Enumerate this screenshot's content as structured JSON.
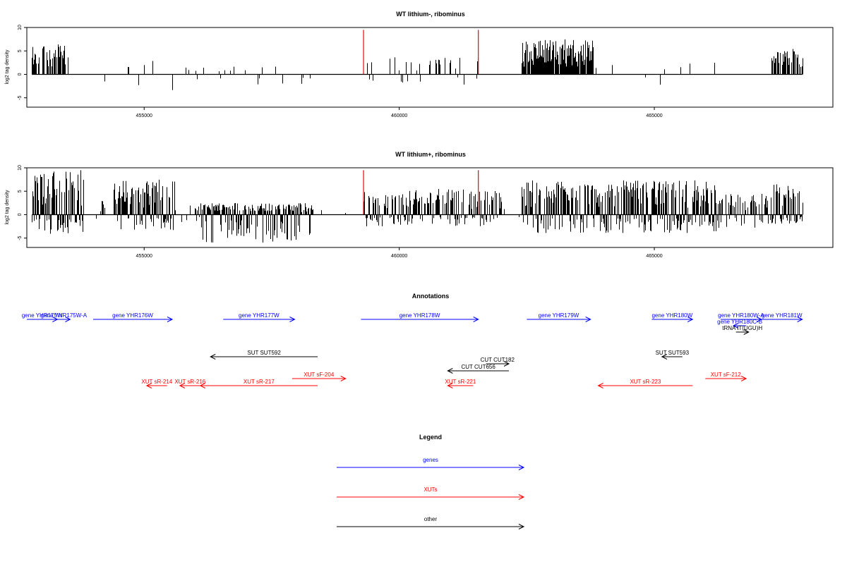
{
  "chart_data": [
    {
      "type": "bar",
      "title": "WT lithium-, ribominus",
      "ylabel": "log2 tag density",
      "xlim": [
        452700,
        468500
      ],
      "ylim": [
        -7,
        10
      ],
      "x_ticks": [
        455000,
        460000,
        465000
      ],
      "y_ticks": [
        -5,
        0,
        5,
        10
      ],
      "highlight_lines": [
        {
          "x": 459300,
          "y": 9.5,
          "color": "#ff0000"
        },
        {
          "x": 461550,
          "y": 9.5,
          "color": "#ff0000"
        }
      ],
      "density_series": [
        {
          "name": "",
          "color": "#000000",
          "segments": [
            {
              "x0": 452800,
              "x1": 453500,
              "ymax": 6.5,
              "ymin": 0,
              "density": 0.7,
              "seed": 11
            },
            {
              "x0": 454200,
              "x1": 455500,
              "ymax": 3,
              "ymin": -3,
              "density": 0.05,
              "seed": 12
            },
            {
              "x0": 455500,
              "x1": 458300,
              "ymax": 2,
              "ymin": -3.5,
              "density": 0.08,
              "seed": 13
            },
            {
              "x0": 459300,
              "x1": 461900,
              "ymax": 3.8,
              "ymin": -2.5,
              "density": 0.18,
              "seed": 14
            },
            {
              "x0": 462400,
              "x1": 463800,
              "ymax": 7.5,
              "ymin": 0,
              "density": 0.9,
              "seed": 15
            },
            {
              "x0": 463800,
              "x1": 466200,
              "ymax": 3,
              "ymin": -2.5,
              "density": 0.05,
              "seed": 16
            },
            {
              "x0": 467300,
              "x1": 467900,
              "ymax": 5.5,
              "ymin": 0,
              "density": 0.6,
              "seed": 17
            }
          ]
        }
      ]
    },
    {
      "type": "bar",
      "title": "WT lithium+, ribominus",
      "ylabel": "log2 tag density",
      "xlim": [
        452700,
        468500
      ],
      "ylim": [
        -7,
        10
      ],
      "x_ticks": [
        455000,
        460000,
        465000
      ],
      "y_ticks": [
        -5,
        0,
        5,
        10
      ],
      "highlight_lines": [
        {
          "x": 459300,
          "y": 9.5,
          "color": "#ff0000"
        },
        {
          "x": 461550,
          "y": 9.5,
          "color": "#ff0000"
        }
      ],
      "density_series": [
        {
          "name": "",
          "color": "#000000",
          "segments": [
            {
              "x0": 452800,
              "x1": 453800,
              "ymax": 9.5,
              "ymin": -4.5,
              "density": 0.95,
              "seed": 21
            },
            {
              "x0": 454000,
              "x1": 454400,
              "ymax": 3,
              "ymin": -1,
              "density": 0.2,
              "seed": 22
            },
            {
              "x0": 454400,
              "x1": 455600,
              "ymax": 7.5,
              "ymin": -3.5,
              "density": 0.9,
              "seed": 23
            },
            {
              "x0": 455600,
              "x1": 456100,
              "ymax": 2,
              "ymin": -2,
              "density": 0.3,
              "seed": 24
            },
            {
              "x0": 456100,
              "x1": 458300,
              "ymax": 2.5,
              "ymin": -6,
              "density": 0.95,
              "seed": 25
            },
            {
              "x0": 458300,
              "x1": 459000,
              "ymax": 1,
              "ymin": -1,
              "density": 0.05,
              "seed": 26
            },
            {
              "x0": 459300,
              "x1": 462000,
              "ymax": 5.5,
              "ymin": -2.5,
              "density": 0.75,
              "seed": 27
            },
            {
              "x0": 462000,
              "x1": 462400,
              "ymax": 2,
              "ymin": -1,
              "density": 0.15,
              "seed": 28
            },
            {
              "x0": 462400,
              "x1": 466200,
              "ymax": 7.5,
              "ymin": -4,
              "density": 0.9,
              "seed": 29
            },
            {
              "x0": 466200,
              "x1": 467300,
              "ymax": 4.5,
              "ymin": -3,
              "density": 0.6,
              "seed": 30
            },
            {
              "x0": 467300,
              "x1": 467900,
              "ymax": 6.5,
              "ymin": -2,
              "density": 0.85,
              "seed": 31
            }
          ]
        }
      ]
    }
  ],
  "annotations": {
    "title": "Annotations",
    "features": [
      {
        "label": "gene YHR175W",
        "color": "#0000ff",
        "x0": 452700,
        "x1": 453300,
        "dir": 1,
        "row": 0
      },
      {
        "label": "gene YHR175W-A",
        "color": "#0000ff",
        "x0": 453300,
        "x1": 453550,
        "dir": 1,
        "row": 0
      },
      {
        "label": "gene YHR176W",
        "color": "#0000ff",
        "x0": 454000,
        "x1": 455550,
        "dir": 1,
        "row": 0
      },
      {
        "label": "gene YHR177W",
        "color": "#0000ff",
        "x0": 456550,
        "x1": 457950,
        "dir": 1,
        "row": 0
      },
      {
        "label": "gene YHR178W",
        "color": "#0000ff",
        "x0": 459250,
        "x1": 461550,
        "dir": 1,
        "row": 0
      },
      {
        "label": "gene YHR179W",
        "color": "#0000ff",
        "x0": 462500,
        "x1": 463750,
        "dir": 1,
        "row": 0
      },
      {
        "label": "gene YHR180W",
        "color": "#0000ff",
        "x0": 464950,
        "x1": 465750,
        "dir": 1,
        "row": 0
      },
      {
        "label": "gene YHR180W-A",
        "color": "#0000ff",
        "x0": 466300,
        "x1": 467100,
        "dir": 1,
        "row": 0
      },
      {
        "label": "gene YHR181W",
        "color": "#0000ff",
        "x0": 467100,
        "x1": 467900,
        "dir": 1,
        "row": 0
      },
      {
        "label": "gene YHR180C-B",
        "color": "#0000ff",
        "x0": 466550,
        "x1": 466800,
        "dir": -1,
        "row": 1
      },
      {
        "label": "tRNA tT(UGU)H",
        "color": "#000000",
        "x0": 466600,
        "x1": 466850,
        "dir": 1,
        "row": 2
      },
      {
        "label": "SUT SUT592",
        "color": "#000000",
        "x0": 456300,
        "x1": 458400,
        "dir": -1,
        "row": 3
      },
      {
        "label": "SUT SUT593",
        "color": "#000000",
        "x0": 465150,
        "x1": 465550,
        "dir": -1,
        "row": 3
      },
      {
        "label": "CUT CUT182",
        "color": "#000000",
        "x0": 461700,
        "x1": 462150,
        "dir": 1,
        "row": 4
      },
      {
        "label": "CUT CUT656",
        "color": "#000000",
        "x0": 460950,
        "x1": 462150,
        "dir": -1,
        "row": 5
      },
      {
        "label": "XUT sF-204",
        "color": "#ff0000",
        "x0": 457900,
        "x1": 458950,
        "dir": 1,
        "row": 6
      },
      {
        "label": "XUT sF-212",
        "color": "#ff0000",
        "x0": 466000,
        "x1": 466800,
        "dir": 1,
        "row": 6
      },
      {
        "label": "XUT sR-214",
        "color": "#ff0000",
        "x0": 455050,
        "x1": 455450,
        "dir": -1,
        "row": 7
      },
      {
        "label": "XUT sR-216",
        "color": "#ff0000",
        "x0": 455700,
        "x1": 456100,
        "dir": -1,
        "row": 7
      },
      {
        "label": "XUT sR-217",
        "color": "#ff0000",
        "x0": 456100,
        "x1": 458400,
        "dir": -1,
        "row": 7
      },
      {
        "label": "XUT sR-221",
        "color": "#ff0000",
        "x0": 460950,
        "x1": 461450,
        "dir": -1,
        "row": 7
      },
      {
        "label": "XUT sR-223",
        "color": "#ff0000",
        "x0": 463900,
        "x1": 465750,
        "dir": -1,
        "row": 7
      }
    ]
  },
  "legend": {
    "title": "Legend",
    "items": [
      {
        "label": "genes",
        "color": "#0000ff"
      },
      {
        "label": "XUTs",
        "color": "#ff0000"
      },
      {
        "label": "other",
        "color": "#000000"
      }
    ]
  }
}
